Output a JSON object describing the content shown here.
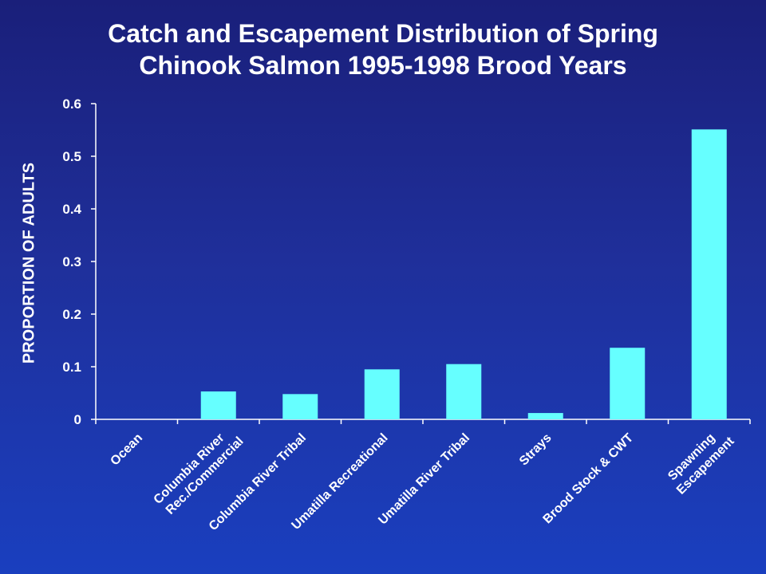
{
  "chart_data": {
    "type": "bar",
    "title_lines": [
      "Catch and Escapement Distribution of Spring",
      "Chinook Salmon 1995-1998 Brood Years"
    ],
    "ylabel": "PROPORTION OF ADULTS",
    "xlabel": "",
    "categories": [
      [
        "Ocean"
      ],
      [
        "Columbia River",
        "Rec./Commercial"
      ],
      [
        "Columbia River Tribal"
      ],
      [
        "Umatilla Recreational"
      ],
      [
        "Umatilla River Tribal"
      ],
      [
        "Strays"
      ],
      [
        "Brood Stock & CWT"
      ],
      [
        "Spawning",
        "Escapement"
      ]
    ],
    "values": [
      0,
      0.053,
      0.048,
      0.095,
      0.105,
      0.012,
      0.136,
      0.551
    ],
    "ylim": [
      0,
      0.6
    ],
    "yticks": [
      "0",
      "0.1",
      "0.2",
      "0.3",
      "0.4",
      "0.5",
      "0.6"
    ],
    "grid": false,
    "colors": {
      "bar": "#66ffff",
      "axis": "#ffffff",
      "text": "#ffffff"
    }
  }
}
